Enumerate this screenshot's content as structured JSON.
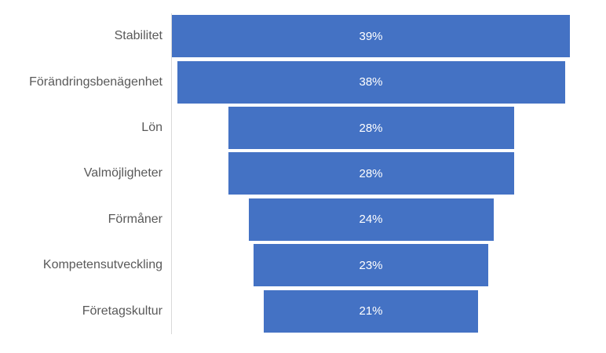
{
  "chart_data": {
    "type": "bar",
    "subtype": "funnel-centered-horizontal-bars",
    "title": "",
    "categories": [
      "Stabilitet",
      "Förändringsbenägenhet",
      "Lön",
      "Valmöjligheter",
      "Förmåner",
      "Kompetensutveckling",
      "Företagskultur"
    ],
    "values": [
      39,
      38,
      28,
      28,
      24,
      23,
      21
    ],
    "value_labels": [
      "39%",
      "38%",
      "28%",
      "28%",
      "24%",
      "23%",
      "21%"
    ],
    "xlabel": "",
    "ylabel": "",
    "axis_max": 39,
    "layout": {
      "bars_centered": true,
      "grid": false,
      "legend": "none",
      "value_labels_position": "center"
    },
    "colors": {
      "bar_fill": "#4472C4",
      "value_label_text": "#FFFFFF",
      "category_label_text": "#595959",
      "axis_line": "#D9D9D9"
    }
  }
}
